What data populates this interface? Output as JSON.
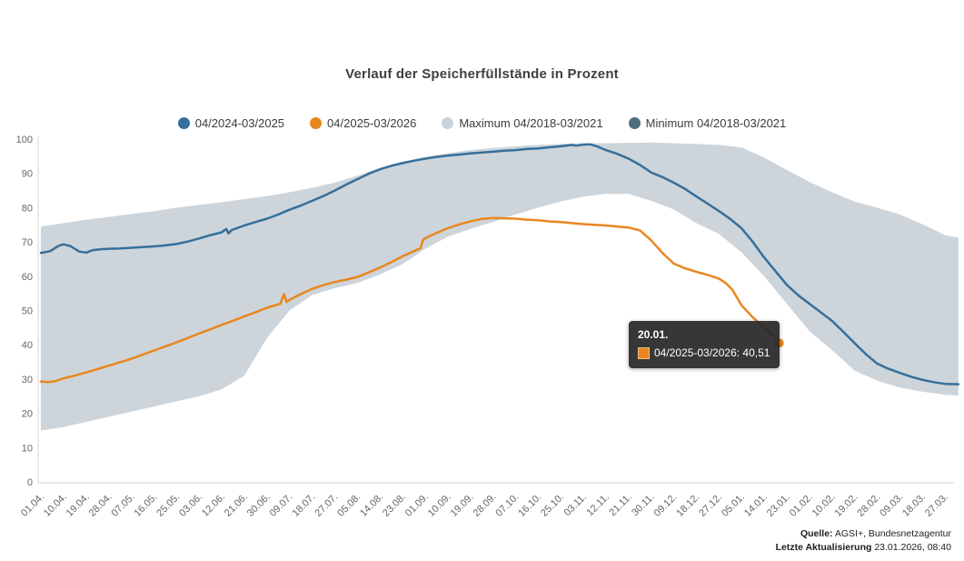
{
  "chart_data": {
    "type": "line",
    "title": "Verlauf der Speicherfüllstände in Prozent",
    "xlabel": "",
    "ylabel": "",
    "ylim": [
      0,
      100
    ],
    "grid": false,
    "legend_position": "top",
    "y_ticks": [
      100,
      90,
      80,
      70,
      60,
      50,
      40,
      30,
      20,
      10,
      0
    ],
    "x_tick_labels": [
      "01.04.",
      "10.04.",
      "19.04.",
      "28.04.",
      "07.05.",
      "16.05.",
      "25.05.",
      "03.06.",
      "12.06.",
      "21.06.",
      "30.06.",
      "09.07.",
      "18.07.",
      "27.07.",
      "05.08.",
      "14.08.",
      "23.08.",
      "01.09.",
      "10.09.",
      "19.09.",
      "28.09.",
      "07.10.",
      "16.10.",
      "25.10.",
      "03.11.",
      "12.11.",
      "21.11.",
      "30.11.",
      "09.12.",
      "18.12.",
      "27.12.",
      "05.01.",
      "14.01.",
      "23.01.",
      "01.02.",
      "10.02.",
      "19.02.",
      "28.02.",
      "09.03.",
      "18.03.",
      "27.03."
    ],
    "series": [
      {
        "name": "04/2024-03/2025",
        "type": "line",
        "color": "#356f9b",
        "points": [
          [
            0,
            66.8
          ],
          [
            0.4,
            67.3
          ],
          [
            0.8,
            68.9
          ],
          [
            1,
            69.3
          ],
          [
            1.3,
            68.8
          ],
          [
            1.7,
            67.2
          ],
          [
            2,
            66.9
          ],
          [
            2.3,
            67.6
          ],
          [
            2.7,
            67.9
          ],
          [
            3,
            68
          ],
          [
            3.5,
            68.1
          ],
          [
            4,
            68.3
          ],
          [
            4.5,
            68.5
          ],
          [
            5,
            68.7
          ],
          [
            5.5,
            69
          ],
          [
            6,
            69.4
          ],
          [
            6.5,
            70.1
          ],
          [
            7,
            71
          ],
          [
            7.5,
            72
          ],
          [
            8,
            72.8
          ],
          [
            8.2,
            73.8
          ],
          [
            8.3,
            72.5
          ],
          [
            8.45,
            73.5
          ],
          [
            9,
            74.8
          ],
          [
            9.5,
            75.8
          ],
          [
            10,
            76.8
          ],
          [
            10.5,
            78
          ],
          [
            11,
            79.4
          ],
          [
            11.5,
            80.6
          ],
          [
            12,
            82
          ],
          [
            12.5,
            83.4
          ],
          [
            13,
            85
          ],
          [
            13.5,
            86.7
          ],
          [
            14,
            88.3
          ],
          [
            14.5,
            89.9
          ],
          [
            15,
            91.2
          ],
          [
            15.5,
            92.2
          ],
          [
            16,
            93
          ],
          [
            16.5,
            93.7
          ],
          [
            17,
            94.3
          ],
          [
            17.5,
            94.8
          ],
          [
            18,
            95.2
          ],
          [
            18.5,
            95.5
          ],
          [
            19,
            95.8
          ],
          [
            19.5,
            96.1
          ],
          [
            20,
            96.3
          ],
          [
            20.5,
            96.6
          ],
          [
            21,
            96.8
          ],
          [
            21.5,
            97.1
          ],
          [
            22,
            97.3
          ],
          [
            22.5,
            97.6
          ],
          [
            23,
            97.9
          ],
          [
            23.5,
            98.3
          ],
          [
            23.7,
            98.1
          ],
          [
            24,
            98.4
          ],
          [
            24.3,
            98.5
          ],
          [
            24.6,
            97.9
          ],
          [
            25,
            96.8
          ],
          [
            25.5,
            95.7
          ],
          [
            26,
            94.3
          ],
          [
            26.5,
            92.5
          ],
          [
            27,
            90.3
          ],
          [
            27.5,
            88.9
          ],
          [
            28,
            87.3
          ],
          [
            28.5,
            85.5
          ],
          [
            29,
            83.3
          ],
          [
            29.5,
            81.2
          ],
          [
            30,
            79
          ],
          [
            30.5,
            76.7
          ],
          [
            31,
            74
          ],
          [
            31.5,
            70
          ],
          [
            32,
            65.5
          ],
          [
            32.5,
            61.5
          ],
          [
            33,
            57.5
          ],
          [
            33.5,
            54.5
          ],
          [
            34,
            52
          ],
          [
            34.5,
            49.5
          ],
          [
            35,
            47
          ],
          [
            35.5,
            43.8
          ],
          [
            36,
            40.5
          ],
          [
            36.5,
            37.3
          ],
          [
            37,
            34.5
          ],
          [
            37.5,
            33
          ],
          [
            38,
            31.8
          ],
          [
            38.5,
            30.7
          ],
          [
            39,
            29.8
          ],
          [
            39.5,
            29.1
          ],
          [
            40,
            28.6
          ],
          [
            40.6,
            28.5
          ]
        ]
      },
      {
        "name": "04/2025-03/2026",
        "type": "line",
        "color": "#e8871f",
        "points": [
          [
            0,
            29.3
          ],
          [
            0.3,
            29.1
          ],
          [
            0.6,
            29.3
          ],
          [
            1,
            30.2
          ],
          [
            1.5,
            31
          ],
          [
            2,
            31.9
          ],
          [
            2.5,
            32.9
          ],
          [
            3,
            33.9
          ],
          [
            3.5,
            34.9
          ],
          [
            4,
            35.9
          ],
          [
            4.5,
            37.1
          ],
          [
            5,
            38.3
          ],
          [
            5.5,
            39.5
          ],
          [
            6,
            40.7
          ],
          [
            6.5,
            42
          ],
          [
            7,
            43.3
          ],
          [
            7.5,
            44.5
          ],
          [
            8,
            45.8
          ],
          [
            8.5,
            47
          ],
          [
            9,
            48.3
          ],
          [
            9.5,
            49.5
          ],
          [
            10,
            50.8
          ],
          [
            10.6,
            52
          ],
          [
            10.75,
            54.8
          ],
          [
            10.87,
            52.5
          ],
          [
            11,
            53.1
          ],
          [
            11.5,
            54.8
          ],
          [
            12,
            56.3
          ],
          [
            12.5,
            57.4
          ],
          [
            13,
            58.3
          ],
          [
            13.5,
            59
          ],
          [
            14,
            59.8
          ],
          [
            14.5,
            61.1
          ],
          [
            15,
            62.5
          ],
          [
            15.5,
            64.1
          ],
          [
            16,
            65.8
          ],
          [
            16.5,
            67.3
          ],
          [
            16.8,
            68.2
          ],
          [
            16.9,
            70.5
          ],
          [
            17,
            71.1
          ],
          [
            17.5,
            72.6
          ],
          [
            18,
            74
          ],
          [
            18.5,
            75.1
          ],
          [
            19,
            76
          ],
          [
            19.5,
            76.7
          ],
          [
            20,
            77
          ],
          [
            20.5,
            76.9
          ],
          [
            21,
            76.8
          ],
          [
            21.5,
            76.5
          ],
          [
            22,
            76.3
          ],
          [
            22.5,
            76
          ],
          [
            23,
            75.8
          ],
          [
            23.5,
            75.5
          ],
          [
            24,
            75.2
          ],
          [
            24.5,
            75
          ],
          [
            25,
            74.8
          ],
          [
            25.5,
            74.5
          ],
          [
            26,
            74.2
          ],
          [
            26.5,
            73.4
          ],
          [
            27,
            70.5
          ],
          [
            27.5,
            66.8
          ],
          [
            28,
            63.7
          ],
          [
            28.5,
            62.3
          ],
          [
            29,
            61.3
          ],
          [
            29.5,
            60.4
          ],
          [
            30,
            59.3
          ],
          [
            30.3,
            58
          ],
          [
            30.6,
            56
          ],
          [
            31,
            51.5
          ],
          [
            31.5,
            48
          ],
          [
            32,
            45
          ],
          [
            32.3,
            43.3
          ],
          [
            32.67,
            40.51
          ]
        ],
        "end_marker": {
          "x": 32.67,
          "y": 40.51
        }
      },
      {
        "name": "Maximum 04/2018-03/2021",
        "type": "range-upper",
        "color": "#c9d2d8",
        "band_fill": "#cdd5db",
        "points": [
          [
            0,
            74.5
          ],
          [
            1,
            75.5
          ],
          [
            2,
            76.5
          ],
          [
            3,
            77.3
          ],
          [
            4,
            78.2
          ],
          [
            5,
            79
          ],
          [
            6,
            80
          ],
          [
            7,
            80.8
          ],
          [
            8,
            81.6
          ],
          [
            9,
            82.5
          ],
          [
            10,
            83.4
          ],
          [
            11,
            84.5
          ],
          [
            12,
            85.8
          ],
          [
            13,
            87.3
          ],
          [
            14,
            89.3
          ],
          [
            15,
            91.5
          ],
          [
            16,
            93.4
          ],
          [
            17,
            94.8
          ],
          [
            18,
            95.9
          ],
          [
            19,
            96.8
          ],
          [
            20,
            97.4
          ],
          [
            21,
            97.9
          ],
          [
            22,
            98.3
          ],
          [
            23,
            98.6
          ],
          [
            24,
            98.8
          ],
          [
            25,
            98.8
          ],
          [
            26,
            98.9
          ],
          [
            27,
            99
          ],
          [
            28,
            98.8
          ],
          [
            29,
            98.6
          ],
          [
            30,
            98.3
          ],
          [
            31,
            97.6
          ],
          [
            32,
            94.6
          ],
          [
            33,
            91
          ],
          [
            34,
            87.5
          ],
          [
            35,
            84.5
          ],
          [
            36,
            81.8
          ],
          [
            37,
            80
          ],
          [
            38,
            78
          ],
          [
            39,
            75.2
          ],
          [
            40,
            72
          ],
          [
            40.6,
            71.3
          ]
        ]
      },
      {
        "name": "Minimum 04/2018-03/2021",
        "type": "range-lower",
        "color": "#4e6d7c",
        "band_fill": "#cdd5db",
        "points": [
          [
            0,
            15
          ],
          [
            1,
            16
          ],
          [
            2,
            17.5
          ],
          [
            3,
            19
          ],
          [
            4,
            20.5
          ],
          [
            5,
            22
          ],
          [
            6,
            23.5
          ],
          [
            7,
            25
          ],
          [
            8,
            27
          ],
          [
            9,
            31
          ],
          [
            10,
            42
          ],
          [
            11,
            50
          ],
          [
            12,
            54.5
          ],
          [
            13,
            56.5
          ],
          [
            14,
            58
          ],
          [
            15,
            60.5
          ],
          [
            16,
            63.5
          ],
          [
            17,
            68
          ],
          [
            18,
            71.5
          ],
          [
            19,
            73.8
          ],
          [
            20,
            75.8
          ],
          [
            21,
            78
          ],
          [
            22,
            80
          ],
          [
            23,
            81.8
          ],
          [
            24,
            83.2
          ],
          [
            25,
            84
          ],
          [
            26,
            84
          ],
          [
            27,
            82
          ],
          [
            28,
            79.5
          ],
          [
            29,
            75.5
          ],
          [
            30,
            72.3
          ],
          [
            31,
            67
          ],
          [
            32,
            60
          ],
          [
            33,
            52
          ],
          [
            34,
            44
          ],
          [
            35,
            38.5
          ],
          [
            36,
            32.5
          ],
          [
            37,
            29.5
          ],
          [
            38,
            27.5
          ],
          [
            39,
            26.3
          ],
          [
            40,
            25.4
          ],
          [
            40.6,
            25.2
          ]
        ]
      }
    ],
    "tooltip": {
      "date": "20.01.",
      "line": "04/2025-03/2026: 40,51",
      "swatch_color": "#e8871f"
    }
  },
  "footer": {
    "source_label": "Quelle:",
    "source_value": " AGSI+, Bundesnetzagentur",
    "updated_label": "Letzte Aktualisierung",
    "updated_value": " 23.01.2026, 08:40"
  }
}
